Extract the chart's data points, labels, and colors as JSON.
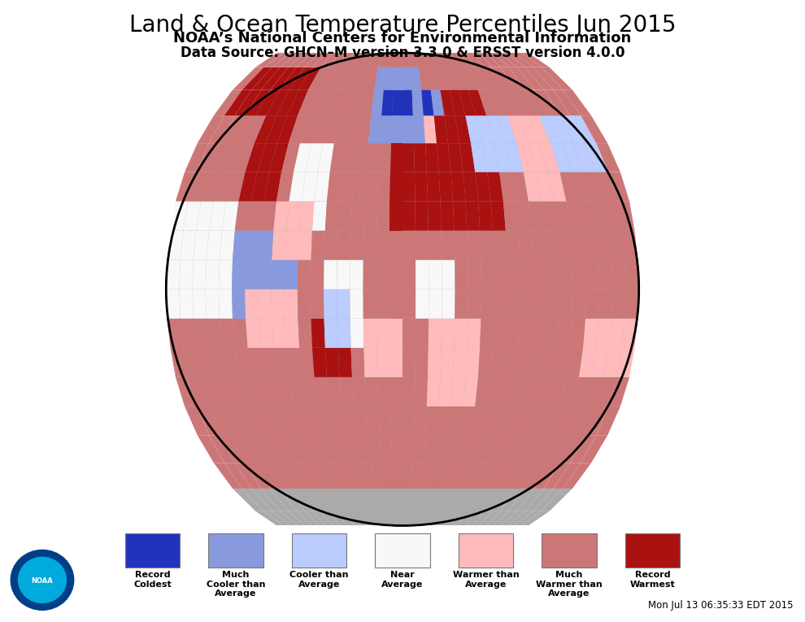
{
  "title": "Land & Ocean Temperature Percentiles Jun 2015",
  "subtitle": "NOAA’s National Centers for Environmental Information",
  "data_source": "Data Source: GHCN–M version 3.3.0 & ERSST version 4.0.0",
  "timestamp": "Mon Jul 13 06:35:33 EDT 2015",
  "legend_items": [
    {
      "label": "Record\nColdest",
      "color": "#2233bb"
    },
    {
      "label": "Much\nCooler than\nAverage",
      "color": "#8899dd"
    },
    {
      "label": "Cooler than\nAverage",
      "color": "#bbccff"
    },
    {
      "label": "Near\nAverage",
      "color": "#f8f8f8"
    },
    {
      "label": "Warmer than\nAverage",
      "color": "#ffbbbb"
    },
    {
      "label": "Much\nWarmer than\nAverage",
      "color": "#cc7777"
    },
    {
      "label": "Record\nWarmest",
      "color": "#aa1111"
    }
  ],
  "background_color": "#ffffff",
  "globe_bg_color": "#aaaaaa",
  "title_fontsize": 20,
  "subtitle_fontsize": 13,
  "source_fontsize": 12
}
